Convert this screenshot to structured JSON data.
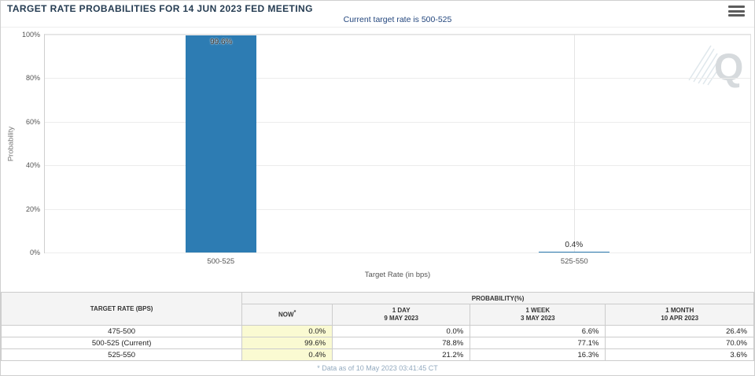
{
  "page": {
    "title": "TARGET RATE PROBABILITIES FOR 14 JUN 2023 FED MEETING"
  },
  "chart": {
    "subtitle": "Current target rate is 500-525",
    "ylabel": "Probability",
    "xlabel": "Target Rate (in bps)",
    "watermark_letter": "Q",
    "bar_color": "#2d7cb3"
  },
  "chart_data": {
    "type": "bar",
    "title": "TARGET RATE PROBABILITIES FOR 14 JUN 2023 FED MEETING",
    "subtitle": "Current target rate is 500-525",
    "categories": [
      "500-525",
      "525-550"
    ],
    "values": [
      99.6,
      0.4
    ],
    "value_labels": [
      "99.6%",
      "0.4%"
    ],
    "xlabel": "Target Rate (in bps)",
    "ylabel": "Probability",
    "ylim": [
      0,
      100
    ],
    "yticks": [
      "0%",
      "20%",
      "40%",
      "60%",
      "80%",
      "100%"
    ],
    "grid": true,
    "legend": false,
    "bar_color": "#2d7cb3"
  },
  "table": {
    "corner_header": "TARGET RATE (BPS)",
    "group_header": "PROBABILITY(%)",
    "columns": [
      {
        "label": "NOW",
        "sup": "*",
        "date": ""
      },
      {
        "label": "1 DAY",
        "date": "9 MAY 2023"
      },
      {
        "label": "1 WEEK",
        "date": "3 MAY 2023"
      },
      {
        "label": "1 MONTH",
        "date": "10 APR 2023"
      }
    ],
    "rows": [
      {
        "target_rate": "475-500",
        "values": [
          "0.0%",
          "0.0%",
          "6.6%",
          "26.4%"
        ]
      },
      {
        "target_rate": "500-525 (Current)",
        "values": [
          "99.6%",
          "78.8%",
          "77.1%",
          "70.0%"
        ]
      },
      {
        "target_rate": "525-550",
        "values": [
          "0.4%",
          "21.2%",
          "16.3%",
          "3.6%"
        ]
      }
    ],
    "now_col_bg": "#fafad2"
  },
  "footnote": "* Data as of 10 May 2023 03:41:45 CT"
}
